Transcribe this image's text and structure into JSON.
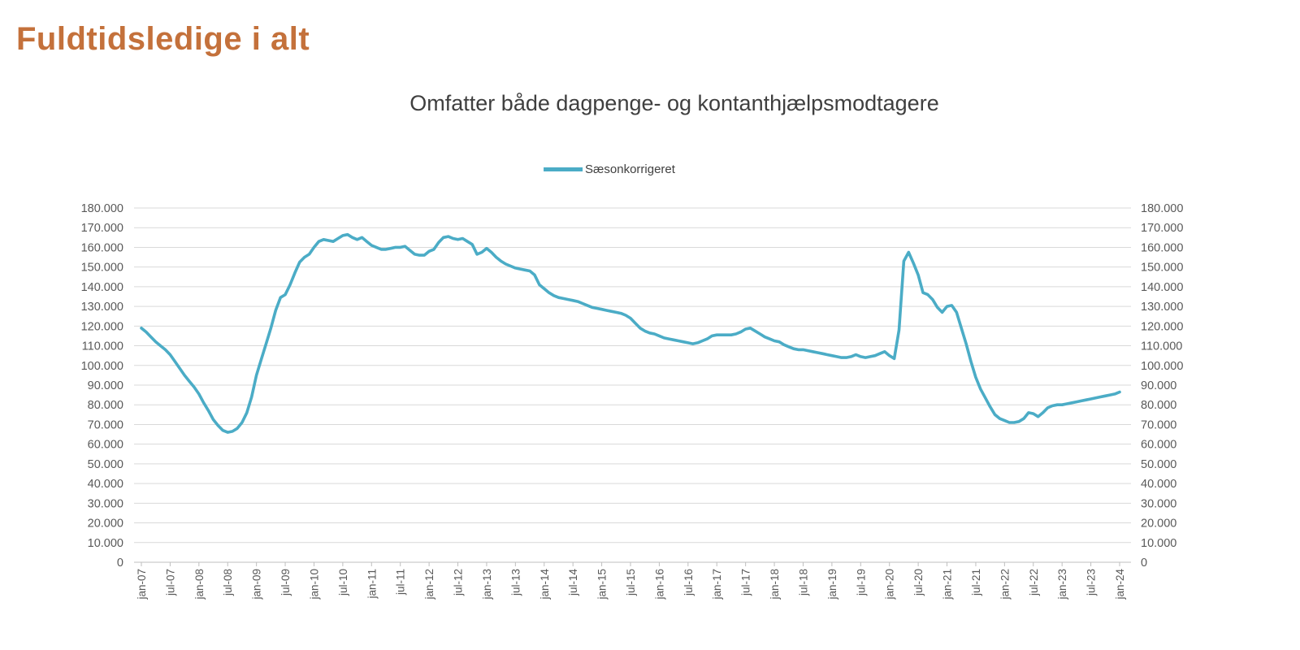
{
  "page": {
    "title": "Fuldtidsledige i alt",
    "title_color": "#C4713B"
  },
  "chart": {
    "subtitle": "Omfatter både dagpenge- og kontanthjælpsmodtagere",
    "legend_label": "Sæsonkorrigeret",
    "colors": {
      "line": "#4BACC6",
      "gridline": "#D9D9D9",
      "axis_line": "#BFBFBF",
      "axis_text": "#595959",
      "subtitle_text": "#3F3F3F"
    }
  },
  "chart_data": {
    "type": "line",
    "title": "Omfatter både dagpenge- og kontanthjælpsmodtagere",
    "xlabel": "",
    "ylabel": "",
    "ylim": [
      0,
      180000
    ],
    "grid": "horizontal",
    "legend_position": "top-center",
    "x_unit": "month",
    "x_start": "jan-07",
    "x_end": "jan-24",
    "x_tick_every_months": 6,
    "x_tick_labels": [
      "jan-07",
      "jul-07",
      "jan-08",
      "jul-08",
      "jan-09",
      "jul-09",
      "jan-10",
      "jul-10",
      "jan-11",
      "jul-11",
      "jan-12",
      "jul-12",
      "jan-13",
      "jul-13",
      "jan-14",
      "jul-14",
      "jan-15",
      "jul-15",
      "jan-16",
      "jul-16",
      "jan-17",
      "jul-17",
      "jan-18",
      "jul-18",
      "jan-19",
      "jul-19",
      "jan-20",
      "jul-20",
      "jan-21",
      "jul-21",
      "jan-22",
      "jul-22",
      "jan-23",
      "jul-23",
      "jan-24"
    ],
    "y_ticks": [
      0,
      10000,
      20000,
      30000,
      40000,
      50000,
      60000,
      70000,
      80000,
      90000,
      100000,
      110000,
      120000,
      130000,
      140000,
      150000,
      160000,
      170000,
      180000
    ],
    "y_tick_labels": [
      "0",
      "10.000",
      "20.000",
      "30.000",
      "40.000",
      "50.000",
      "60.000",
      "70.000",
      "80.000",
      "90.000",
      "100.000",
      "110.000",
      "120.000",
      "130.000",
      "140.000",
      "150.000",
      "160.000",
      "170.000",
      "180.000"
    ],
    "y_axis_mirrored_right": true,
    "series": [
      {
        "name": "Sæsonkorrigeret",
        "color": "#4BACC6",
        "values": [
          119000,
          117000,
          114500,
          112000,
          110000,
          108000,
          105500,
          102000,
          98500,
          95000,
          92000,
          89000,
          85500,
          81000,
          77000,
          72500,
          69500,
          67000,
          66000,
          66500,
          68000,
          71000,
          76000,
          84000,
          95000,
          103000,
          111000,
          119000,
          128000,
          134500,
          136000,
          141000,
          147000,
          152500,
          155000,
          156500,
          160000,
          163000,
          164000,
          163500,
          163000,
          164500,
          166000,
          166500,
          165000,
          164000,
          165000,
          163000,
          161000,
          160000,
          159000,
          159000,
          159500,
          160000,
          160000,
          160500,
          158500,
          156500,
          156000,
          156000,
          158000,
          159000,
          162500,
          165000,
          165500,
          164500,
          164000,
          164500,
          163000,
          161500,
          156500,
          157500,
          159500,
          157500,
          155000,
          153000,
          151500,
          150500,
          149500,
          149000,
          148500,
          148000,
          146000,
          141000,
          139000,
          137000,
          135500,
          134500,
          134000,
          133500,
          133000,
          132500,
          131500,
          130500,
          129500,
          129000,
          128500,
          128000,
          127500,
          127000,
          126500,
          125500,
          124000,
          121500,
          119000,
          117500,
          116500,
          116000,
          115000,
          114000,
          113500,
          113000,
          112500,
          112000,
          111500,
          111000,
          111500,
          112500,
          113500,
          115000,
          115500,
          115500,
          115500,
          115500,
          116000,
          117000,
          118500,
          119000,
          117500,
          116000,
          114500,
          113500,
          112500,
          112000,
          110500,
          109500,
          108500,
          108000,
          108000,
          107500,
          107000,
          106500,
          106000,
          105500,
          105000,
          104500,
          104000,
          104000,
          104500,
          105500,
          104500,
          104000,
          104500,
          105000,
          106000,
          107000,
          105000,
          103500,
          118000,
          153000,
          157500,
          152000,
          146000,
          137000,
          136000,
          133500,
          129500,
          127000,
          130000,
          130500,
          127000,
          119000,
          111000,
          102000,
          94000,
          88000,
          83500,
          79000,
          75000,
          73000,
          72000,
          71000,
          71000,
          71500,
          73000,
          76000,
          75500,
          74000,
          76000,
          78500,
          79500,
          80000,
          80000,
          80500,
          81000,
          81500,
          82000,
          82500,
          83000,
          83500,
          84000,
          84500,
          85000,
          85500,
          86500
        ]
      }
    ]
  }
}
